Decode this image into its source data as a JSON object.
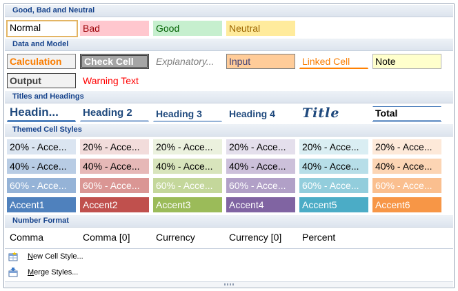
{
  "sections": {
    "good_bad_neutral": "Good, Bad and Neutral",
    "data_model": "Data and Model",
    "titles_headings": "Titles and Headings",
    "themed": "Themed Cell Styles",
    "number_format": "Number Format"
  },
  "good_bad_neutral": {
    "normal": "Normal",
    "bad": "Bad",
    "good": "Good",
    "neutral": "Neutral"
  },
  "data_model": {
    "calculation": "Calculation",
    "check_cell": "Check Cell",
    "explanatory": "Explanatory...",
    "input": "Input",
    "linked_cell": "Linked Cell",
    "note": "Note",
    "output": "Output",
    "warning_text": "Warning Text"
  },
  "titles_headings": {
    "heading1": "Headin...",
    "heading2": "Heading 2",
    "heading3": "Heading 3",
    "heading4": "Heading 4",
    "title": "Title",
    "total": "Total"
  },
  "themed": {
    "rows": [
      {
        "labels": [
          "20% - Acce...",
          "20% - Acce...",
          "20% - Acce...",
          "20% - Acce...",
          "20% - Acce...",
          "20% - Acce..."
        ],
        "bg": [
          "#dbe5f1",
          "#f2dcdb",
          "#ebf1de",
          "#e4dfec",
          "#daeef3",
          "#fde9d9"
        ],
        "fg": [
          "#000000",
          "#000000",
          "#000000",
          "#000000",
          "#000000",
          "#000000"
        ]
      },
      {
        "labels": [
          "40% - Acce...",
          "40% - Acce...",
          "40% - Acce...",
          "40% - Acce...",
          "40% - Acce...",
          "40% - Acce..."
        ],
        "bg": [
          "#b8cce4",
          "#e6b8b7",
          "#d8e4bc",
          "#ccc0da",
          "#b7dee8",
          "#fcd5b4"
        ],
        "fg": [
          "#000000",
          "#000000",
          "#000000",
          "#000000",
          "#000000",
          "#000000"
        ]
      },
      {
        "labels": [
          "60% - Acce...",
          "60% - Acce...",
          "60% - Acce...",
          "60% - Acce...",
          "60% - Acce...",
          "60% - Acce..."
        ],
        "bg": [
          "#95b3d7",
          "#da9694",
          "#c4d79b",
          "#b1a0c7",
          "#92cddc",
          "#fabf8f"
        ],
        "fg": [
          "#ffffff",
          "#ffffff",
          "#ffffff",
          "#ffffff",
          "#ffffff",
          "#ffffff"
        ]
      },
      {
        "labels": [
          "Accent1",
          "Accent2",
          "Accent3",
          "Accent4",
          "Accent5",
          "Accent6"
        ],
        "bg": [
          "#4f81bd",
          "#c0504d",
          "#9bbb59",
          "#8064a2",
          "#4bacc6",
          "#f79646"
        ],
        "fg": [
          "#ffffff",
          "#ffffff",
          "#ffffff",
          "#ffffff",
          "#ffffff",
          "#ffffff"
        ]
      }
    ]
  },
  "number_format": {
    "items": [
      "Comma",
      "Comma [0]",
      "Currency",
      "Currency [0]",
      "Percent"
    ]
  },
  "actions": {
    "new_cell_style": {
      "underline": "N",
      "rest": "ew Cell Style..."
    },
    "merge_styles": {
      "underline": "M",
      "rest": "erge Styles..."
    }
  },
  "icons": {
    "new_cell_style": "new-style-icon",
    "merge_styles": "merge-styles-icon"
  }
}
